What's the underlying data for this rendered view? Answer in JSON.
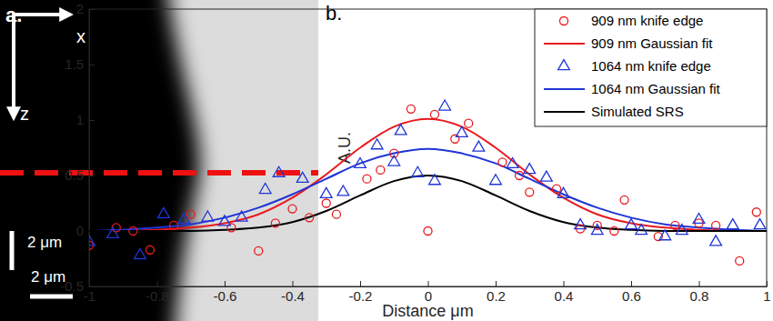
{
  "panel_a": {
    "label": "a.",
    "axes": [
      "x",
      "z"
    ],
    "scale_bars": [
      "2 μm",
      "2 μm"
    ]
  },
  "chart_data": {
    "type": "scatter",
    "title": "b.",
    "xlabel": "Distance μm",
    "ylabel": "A.U.",
    "xlim": [
      -1,
      1
    ],
    "ylim": [
      -0.5,
      2
    ],
    "xticks": [
      -1,
      -0.8,
      -0.6,
      -0.4,
      -0.2,
      0,
      0.2,
      0.4,
      0.6,
      0.8,
      1
    ],
    "yticks": [
      -0.5,
      0,
      0.5,
      1,
      1.5,
      2
    ],
    "grid": false,
    "legend": "top-right",
    "series": [
      {
        "name": "909 nm knife edge",
        "type": "scatter",
        "marker": "circle",
        "color": "#e8191e",
        "x": [
          -1,
          -0.92,
          -0.87,
          -0.82,
          -0.75,
          -0.7,
          -0.58,
          -0.5,
          -0.45,
          -0.4,
          -0.35,
          -0.3,
          -0.27,
          -0.18,
          -0.14,
          -0.1,
          -0.05,
          0,
          0.02,
          0.08,
          0.12,
          0.22,
          0.27,
          0.3,
          0.38,
          0.45,
          0.5,
          0.55,
          0.58,
          0.68,
          0.73,
          0.8,
          0.85,
          0.92,
          0.97
        ],
        "values": [
          -0.13,
          0.03,
          0.0,
          -0.17,
          0.05,
          0.15,
          0.03,
          -0.18,
          0.07,
          0.2,
          0.12,
          0.25,
          0.15,
          0.47,
          0.55,
          0.7,
          1.1,
          0.0,
          1.05,
          0.83,
          0.97,
          0.62,
          0.5,
          0.35,
          0.38,
          0.02,
          0.05,
          0.0,
          0.28,
          -0.05,
          0.05,
          0.07,
          0.05,
          -0.27,
          0.17
        ]
      },
      {
        "name": "909 nm Gaussian fit",
        "type": "line",
        "line_style": "solid",
        "color": "#e8191e",
        "x": [
          -1,
          -0.9,
          -0.8,
          -0.7,
          -0.6,
          -0.5,
          -0.4,
          -0.3,
          -0.2,
          -0.1,
          0,
          0.1,
          0.2,
          0.3,
          0.4,
          0.5,
          0.6,
          0.7,
          0.8,
          0.9,
          1
        ],
        "values": [
          0,
          0,
          0.01,
          0.03,
          0.07,
          0.15,
          0.3,
          0.51,
          0.75,
          0.94,
          1.01,
          0.94,
          0.75,
          0.51,
          0.3,
          0.15,
          0.07,
          0.03,
          0.01,
          0,
          0
        ]
      },
      {
        "name": "1064 nm knife edge",
        "type": "scatter",
        "marker": "triangle",
        "color": "#1f35d6",
        "x": [
          -1,
          -0.93,
          -0.85,
          -0.78,
          -0.72,
          -0.65,
          -0.6,
          -0.55,
          -0.48,
          -0.44,
          -0.37,
          -0.3,
          -0.25,
          -0.2,
          -0.15,
          -0.1,
          -0.08,
          -0.03,
          0.02,
          0.05,
          0.1,
          0.15,
          0.2,
          0.25,
          0.3,
          0.35,
          0.4,
          0.45,
          0.5,
          0.6,
          0.63,
          0.7,
          0.75,
          0.8,
          0.85,
          0.9,
          0.98
        ],
        "values": [
          -0.1,
          -0.03,
          -0.22,
          0.15,
          0.1,
          0.12,
          0.08,
          0.12,
          0.37,
          0.52,
          0.47,
          0.33,
          0.35,
          0.6,
          0.77,
          0.62,
          0.9,
          0.52,
          0.45,
          1.12,
          0.88,
          0.75,
          0.45,
          0.6,
          0.55,
          0.48,
          0.33,
          0.05,
          0.0,
          0.05,
          0.0,
          -0.05,
          0.0,
          0.1,
          -0.1,
          0.05,
          0.05
        ]
      },
      {
        "name": "1064 nm Gaussian fit",
        "type": "line",
        "line_style": "solid",
        "color": "#1f35d6",
        "x": [
          -1,
          -0.9,
          -0.8,
          -0.7,
          -0.6,
          -0.5,
          -0.4,
          -0.3,
          -0.2,
          -0.1,
          0,
          0.1,
          0.2,
          0.3,
          0.4,
          0.5,
          0.6,
          0.7,
          0.8,
          0.9,
          1
        ],
        "values": [
          0,
          0.01,
          0.03,
          0.06,
          0.12,
          0.21,
          0.33,
          0.47,
          0.61,
          0.7,
          0.74,
          0.7,
          0.61,
          0.47,
          0.33,
          0.21,
          0.12,
          0.06,
          0.03,
          0.01,
          0
        ]
      },
      {
        "name": "Simulated SRS",
        "type": "line",
        "line_style": "solid",
        "color": "#000000",
        "x": [
          -1,
          -0.9,
          -0.8,
          -0.7,
          -0.6,
          -0.5,
          -0.4,
          -0.3,
          -0.2,
          -0.1,
          0,
          0.1,
          0.2,
          0.3,
          0.4,
          0.5,
          0.6,
          0.7,
          0.8,
          0.9,
          1
        ],
        "values": [
          0,
          0,
          0,
          0,
          0.01,
          0.03,
          0.08,
          0.18,
          0.32,
          0.45,
          0.5,
          0.45,
          0.32,
          0.18,
          0.08,
          0.03,
          0.01,
          0,
          0,
          0,
          0
        ]
      }
    ]
  }
}
